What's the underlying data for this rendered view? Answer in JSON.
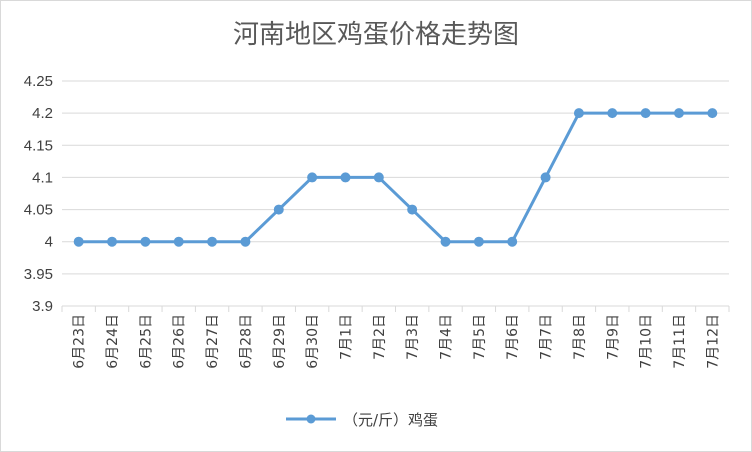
{
  "chart_data": {
    "type": "line",
    "title": "河南地区鸡蛋价格走势图",
    "categories": [
      "6月23日",
      "6月24日",
      "6月25日",
      "6月26日",
      "6月27日",
      "6月28日",
      "6月29日",
      "6月30日",
      "7月1日",
      "7月2日",
      "7月3日",
      "7月4日",
      "7月5日",
      "7月6日",
      "7月7日",
      "7月8日",
      "7月9日",
      "7月10日",
      "7月11日",
      "7月12日"
    ],
    "series": [
      {
        "name": "（元/斤）鸡蛋",
        "values": [
          4,
          4,
          4,
          4,
          4,
          4,
          4.05,
          4.1,
          4.1,
          4.1,
          4.05,
          4,
          4,
          4,
          4.1,
          4.2,
          4.2,
          4.2,
          4.2,
          4.2
        ],
        "color": "#5b9bd5"
      }
    ],
    "ylim": [
      3.9,
      4.25
    ],
    "yticks": [
      "3.9",
      "3.95",
      "4",
      "4.05",
      "4.1",
      "4.15",
      "4.2",
      "4.25"
    ],
    "grid": true,
    "legend_position": "bottom",
    "gridline_color": "#d9d9d9"
  }
}
